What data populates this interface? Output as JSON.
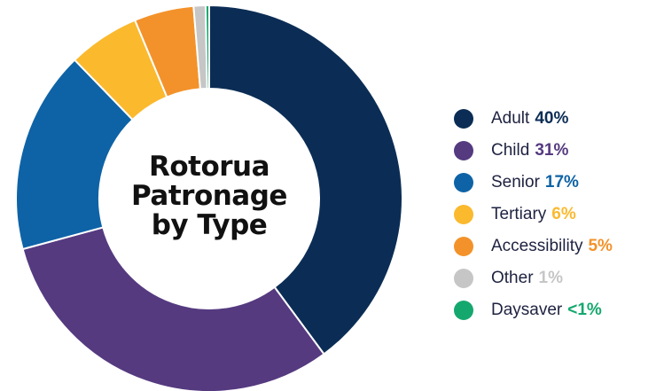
{
  "chart_data": {
    "type": "pie",
    "title": [
      "Rotorua",
      "Patronage",
      "by Type"
    ],
    "legend_position": "right",
    "series": [
      {
        "name": "Adult",
        "value": 40,
        "value_label": "40%",
        "color": "#0b2d55"
      },
      {
        "name": "Child",
        "value": 31,
        "value_label": "31%",
        "color": "#553a80"
      },
      {
        "name": "Senior",
        "value": 17,
        "value_label": "17%",
        "color": "#0e63a6"
      },
      {
        "name": "Tertiary",
        "value": 6,
        "value_label": "6%",
        "color": "#fbb92e"
      },
      {
        "name": "Accessibility",
        "value": 5,
        "value_label": "5%",
        "color": "#f3922a"
      },
      {
        "name": "Other",
        "value": 1,
        "value_label": "1%",
        "color": "#c6c6c6"
      },
      {
        "name": "Daysaver",
        "value": 0.3,
        "value_label": "<1%",
        "color": "#15a86e"
      }
    ]
  }
}
